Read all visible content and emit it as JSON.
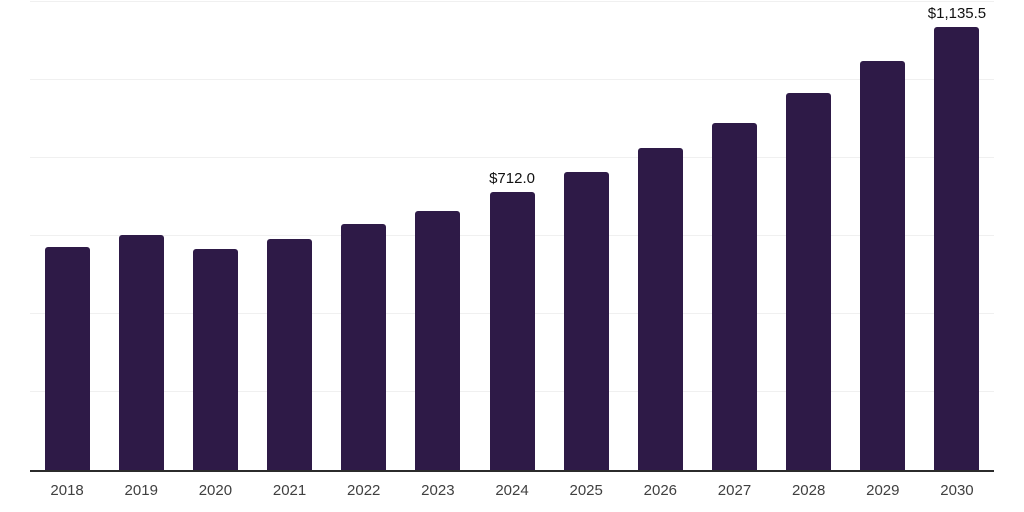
{
  "chart_data": {
    "type": "bar",
    "title": "",
    "xlabel": "",
    "ylabel": "",
    "categories": [
      "2018",
      "2019",
      "2020",
      "2021",
      "2022",
      "2023",
      "2024",
      "2025",
      "2026",
      "2027",
      "2028",
      "2029",
      "2030"
    ],
    "values": [
      573,
      603,
      567,
      592,
      630,
      665,
      712,
      765,
      826,
      890,
      967,
      1050,
      1135.5
    ],
    "data_labels": {
      "2024": "$712.0",
      "2030": "$1,135.5"
    },
    "ylim": [
      0,
      1200
    ],
    "gridline_step": 200,
    "grid": "horizontal",
    "legend": "none",
    "colors": {
      "bar": "#2e1a47",
      "axis_line": "#2b2b2b",
      "gridline": "#f0f0f0",
      "tick_label": "#404040",
      "data_label": "#111111"
    }
  }
}
